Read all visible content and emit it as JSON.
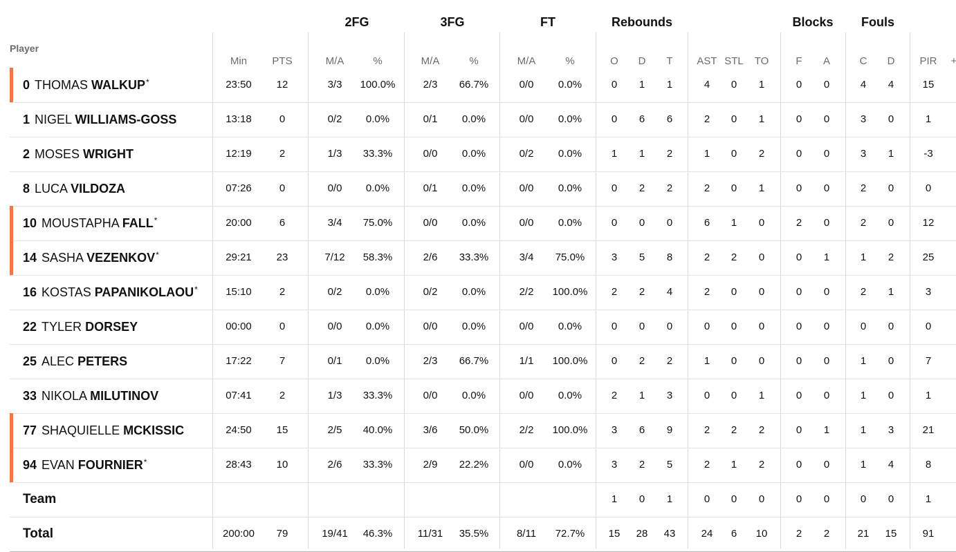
{
  "groups": {
    "fg2": "2FG",
    "fg3": "3FG",
    "ft": "FT",
    "rebounds": "Rebounds",
    "blocks": "Blocks",
    "fouls": "Fouls"
  },
  "headers": {
    "player": "Player",
    "min": "Min",
    "pts": "PTS",
    "fg2_ma": "M/A",
    "fg2_pct": "%",
    "fg3_ma": "M/A",
    "fg3_pct": "%",
    "ft_ma": "M/A",
    "ft_pct": "%",
    "o": "O",
    "d": "D",
    "t": "T",
    "ast": "AST",
    "stl": "STL",
    "to": "TO",
    "f": "F",
    "a": "A",
    "c": "C",
    "d2": "D",
    "pir": "PIR",
    "pm": "+/"
  },
  "columns": [
    "min",
    "pts",
    "fg2_ma",
    "fg2_pct",
    "fg3_ma",
    "fg3_pct",
    "ft_ma",
    "ft_pct",
    "o",
    "d",
    "t",
    "ast",
    "stl",
    "to",
    "f",
    "a",
    "c",
    "d2",
    "pir"
  ],
  "colors": {
    "starter": "#f07a3e"
  },
  "players": [
    {
      "num": "0",
      "first": "THOMAS",
      "last": "WALKUP",
      "star": "*",
      "starter": true,
      "min": "23:50",
      "pts": "12",
      "fg2_ma": "3/3",
      "fg2_pct": "100.0%",
      "fg3_ma": "2/3",
      "fg3_pct": "66.7%",
      "ft_ma": "0/0",
      "ft_pct": "0.0%",
      "o": "0",
      "d": "1",
      "t": "1",
      "ast": "4",
      "stl": "0",
      "to": "1",
      "f": "0",
      "a": "0",
      "c": "4",
      "d2": "4",
      "pir": "15"
    },
    {
      "num": "1",
      "first": "NIGEL",
      "last": "WILLIAMS-GOSS",
      "star": "",
      "starter": false,
      "min": "13:18",
      "pts": "0",
      "fg2_ma": "0/2",
      "fg2_pct": "0.0%",
      "fg3_ma": "0/1",
      "fg3_pct": "0.0%",
      "ft_ma": "0/0",
      "ft_pct": "0.0%",
      "o": "0",
      "d": "6",
      "t": "6",
      "ast": "2",
      "stl": "0",
      "to": "1",
      "f": "0",
      "a": "0",
      "c": "3",
      "d2": "0",
      "pir": "1"
    },
    {
      "num": "2",
      "first": "MOSES",
      "last": "WRIGHT",
      "star": "",
      "starter": false,
      "min": "12:19",
      "pts": "2",
      "fg2_ma": "1/3",
      "fg2_pct": "33.3%",
      "fg3_ma": "0/0",
      "fg3_pct": "0.0%",
      "ft_ma": "0/2",
      "ft_pct": "0.0%",
      "o": "1",
      "d": "1",
      "t": "2",
      "ast": "1",
      "stl": "0",
      "to": "2",
      "f": "0",
      "a": "0",
      "c": "3",
      "d2": "1",
      "pir": "-3"
    },
    {
      "num": "8",
      "first": "LUCA",
      "last": "VILDOZA",
      "star": "",
      "starter": false,
      "min": "07:26",
      "pts": "0",
      "fg2_ma": "0/0",
      "fg2_pct": "0.0%",
      "fg3_ma": "0/1",
      "fg3_pct": "0.0%",
      "ft_ma": "0/0",
      "ft_pct": "0.0%",
      "o": "0",
      "d": "2",
      "t": "2",
      "ast": "2",
      "stl": "0",
      "to": "1",
      "f": "0",
      "a": "0",
      "c": "2",
      "d2": "0",
      "pir": "0"
    },
    {
      "num": "10",
      "first": "MOUSTAPHA",
      "last": "FALL",
      "star": "*",
      "starter": true,
      "min": "20:00",
      "pts": "6",
      "fg2_ma": "3/4",
      "fg2_pct": "75.0%",
      "fg3_ma": "0/0",
      "fg3_pct": "0.0%",
      "ft_ma": "0/0",
      "ft_pct": "0.0%",
      "o": "0",
      "d": "0",
      "t": "0",
      "ast": "6",
      "stl": "1",
      "to": "0",
      "f": "2",
      "a": "0",
      "c": "2",
      "d2": "0",
      "pir": "12"
    },
    {
      "num": "14",
      "first": "SASHA",
      "last": "VEZENKOV",
      "star": "*",
      "starter": true,
      "min": "29:21",
      "pts": "23",
      "fg2_ma": "7/12",
      "fg2_pct": "58.3%",
      "fg3_ma": "2/6",
      "fg3_pct": "33.3%",
      "ft_ma": "3/4",
      "ft_pct": "75.0%",
      "o": "3",
      "d": "5",
      "t": "8",
      "ast": "2",
      "stl": "2",
      "to": "0",
      "f": "0",
      "a": "1",
      "c": "1",
      "d2": "2",
      "pir": "25"
    },
    {
      "num": "16",
      "first": "KOSTAS",
      "last": "PAPANIKOLAOU",
      "star": "*",
      "starter": false,
      "min": "15:10",
      "pts": "2",
      "fg2_ma": "0/2",
      "fg2_pct": "0.0%",
      "fg3_ma": "0/2",
      "fg3_pct": "0.0%",
      "ft_ma": "2/2",
      "ft_pct": "100.0%",
      "o": "2",
      "d": "2",
      "t": "4",
      "ast": "2",
      "stl": "0",
      "to": "0",
      "f": "0",
      "a": "0",
      "c": "2",
      "d2": "1",
      "pir": "3"
    },
    {
      "num": "22",
      "first": "TYLER",
      "last": "DORSEY",
      "star": "",
      "starter": false,
      "min": "00:00",
      "pts": "0",
      "fg2_ma": "0/0",
      "fg2_pct": "0.0%",
      "fg3_ma": "0/0",
      "fg3_pct": "0.0%",
      "ft_ma": "0/0",
      "ft_pct": "0.0%",
      "o": "0",
      "d": "0",
      "t": "0",
      "ast": "0",
      "stl": "0",
      "to": "0",
      "f": "0",
      "a": "0",
      "c": "0",
      "d2": "0",
      "pir": "0"
    },
    {
      "num": "25",
      "first": "ALEC",
      "last": "PETERS",
      "star": "",
      "starter": false,
      "min": "17:22",
      "pts": "7",
      "fg2_ma": "0/1",
      "fg2_pct": "0.0%",
      "fg3_ma": "2/3",
      "fg3_pct": "66.7%",
      "ft_ma": "1/1",
      "ft_pct": "100.0%",
      "o": "0",
      "d": "2",
      "t": "2",
      "ast": "1",
      "stl": "0",
      "to": "0",
      "f": "0",
      "a": "0",
      "c": "1",
      "d2": "0",
      "pir": "7"
    },
    {
      "num": "33",
      "first": "NIKOLA",
      "last": "MILUTINOV",
      "star": "",
      "starter": false,
      "min": "07:41",
      "pts": "2",
      "fg2_ma": "1/3",
      "fg2_pct": "33.3%",
      "fg3_ma": "0/0",
      "fg3_pct": "0.0%",
      "ft_ma": "0/0",
      "ft_pct": "0.0%",
      "o": "2",
      "d": "1",
      "t": "3",
      "ast": "0",
      "stl": "0",
      "to": "1",
      "f": "0",
      "a": "0",
      "c": "1",
      "d2": "0",
      "pir": "1"
    },
    {
      "num": "77",
      "first": "SHAQUIELLE",
      "last": "MCKISSIC",
      "star": "",
      "starter": true,
      "min": "24:50",
      "pts": "15",
      "fg2_ma": "2/5",
      "fg2_pct": "40.0%",
      "fg3_ma": "3/6",
      "fg3_pct": "50.0%",
      "ft_ma": "2/2",
      "ft_pct": "100.0%",
      "o": "3",
      "d": "6",
      "t": "9",
      "ast": "2",
      "stl": "2",
      "to": "2",
      "f": "0",
      "a": "1",
      "c": "1",
      "d2": "3",
      "pir": "21"
    },
    {
      "num": "94",
      "first": "EVAN",
      "last": "FOURNIER",
      "star": "*",
      "starter": true,
      "min": "28:43",
      "pts": "10",
      "fg2_ma": "2/6",
      "fg2_pct": "33.3%",
      "fg3_ma": "2/9",
      "fg3_pct": "22.2%",
      "ft_ma": "0/0",
      "ft_pct": "0.0%",
      "o": "3",
      "d": "2",
      "t": "5",
      "ast": "2",
      "stl": "1",
      "to": "2",
      "f": "0",
      "a": "0",
      "c": "1",
      "d2": "4",
      "pir": "8"
    }
  ],
  "team": {
    "label": "Team",
    "min": "",
    "pts": "",
    "fg2_ma": "",
    "fg2_pct": "",
    "fg3_ma": "",
    "fg3_pct": "",
    "ft_ma": "",
    "ft_pct": "",
    "o": "1",
    "d": "0",
    "t": "1",
    "ast": "0",
    "stl": "0",
    "to": "0",
    "f": "0",
    "a": "0",
    "c": "0",
    "d2": "0",
    "pir": "1"
  },
  "total": {
    "label": "Total",
    "min": "200:00",
    "pts": "79",
    "fg2_ma": "19/41",
    "fg2_pct": "46.3%",
    "fg3_ma": "11/31",
    "fg3_pct": "35.5%",
    "ft_ma": "8/11",
    "ft_pct": "72.7%",
    "o": "15",
    "d": "28",
    "t": "43",
    "ast": "24",
    "stl": "6",
    "to": "10",
    "f": "2",
    "a": "2",
    "c": "21",
    "d2": "15",
    "pir": "91"
  }
}
